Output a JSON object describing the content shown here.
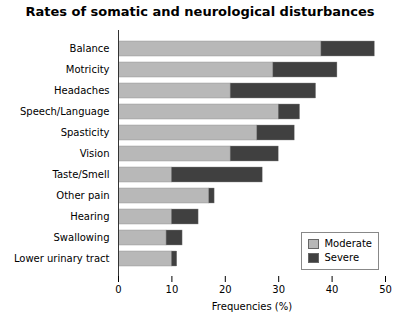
{
  "chart_data": {
    "type": "bar",
    "orientation": "horizontal",
    "stacked": true,
    "title": "Rates of somatic and neurological disturbances",
    "categories": [
      "Balance",
      "Motricity",
      "Headaches",
      "Speech/Language",
      "Spasticity",
      "Vision",
      "Taste/Smell",
      "Other pain",
      "Hearing",
      "Swallowing",
      "Lower urinary tract"
    ],
    "series": [
      {
        "name": "Moderate",
        "color": "#b8b8b8",
        "values": [
          38,
          29,
          21,
          30,
          26,
          21,
          10,
          17,
          10,
          9,
          10
        ]
      },
      {
        "name": "Severe",
        "color": "#404040",
        "values": [
          10,
          12,
          16,
          4,
          7,
          9,
          17,
          1,
          5,
          3,
          1
        ]
      }
    ],
    "xlabel": "Frequencies (%)",
    "xlim": [
      0,
      50
    ],
    "xticks": [
      0,
      10,
      20,
      30,
      40,
      50
    ],
    "legend": "lower right"
  }
}
